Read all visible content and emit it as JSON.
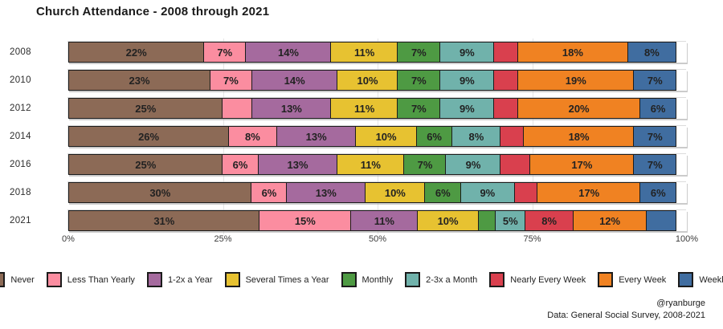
{
  "title": "Church Attendance - 2008 through 2021",
  "credit": {
    "handle": "@ryanburge",
    "source": "Data: General Social Survey, 2008-2021"
  },
  "chart_data": {
    "type": "bar",
    "stacked": true,
    "horizontal": true,
    "title": "Church Attendance - 2008 through 2021",
    "categories": [
      "2008",
      "2010",
      "2012",
      "2014",
      "2016",
      "2018",
      "2021"
    ],
    "series": [
      {
        "name": "Never",
        "color": "#8C6A56",
        "values": [
          22,
          23,
          25,
          26,
          25,
          30,
          31
        ],
        "label_shown": [
          true,
          true,
          true,
          true,
          true,
          true,
          true
        ]
      },
      {
        "name": "Less Than Yearly",
        "color": "#FB8DA0",
        "values": [
          7,
          7,
          5,
          8,
          6,
          6,
          15
        ],
        "label_shown": [
          true,
          true,
          false,
          true,
          true,
          true,
          true
        ]
      },
      {
        "name": "1-2x a Year",
        "color": "#A56A9E",
        "values": [
          14,
          14,
          13,
          13,
          13,
          13,
          11
        ],
        "label_shown": [
          true,
          true,
          true,
          true,
          true,
          true,
          true
        ]
      },
      {
        "name": "Several Times a Year",
        "color": "#E7C231",
        "values": [
          11,
          10,
          11,
          10,
          11,
          10,
          10
        ],
        "label_shown": [
          true,
          true,
          true,
          true,
          true,
          true,
          true
        ]
      },
      {
        "name": "Monthly",
        "color": "#4E9A43",
        "values": [
          7,
          7,
          7,
          6,
          7,
          6,
          3
        ],
        "label_shown": [
          true,
          true,
          true,
          true,
          true,
          true,
          false
        ]
      },
      {
        "name": "2-3x a Month",
        "color": "#70B2AB",
        "values": [
          9,
          9,
          9,
          8,
          9,
          9,
          5
        ],
        "label_shown": [
          true,
          true,
          true,
          true,
          true,
          true,
          true
        ]
      },
      {
        "name": "Nearly Every Week",
        "color": "#D9404E",
        "values": [
          4,
          4,
          4,
          4,
          5,
          4,
          8
        ],
        "label_shown": [
          false,
          false,
          false,
          false,
          false,
          false,
          true
        ]
      },
      {
        "name": "Every Week",
        "color": "#F08222",
        "values": [
          18,
          19,
          20,
          18,
          17,
          17,
          12
        ],
        "label_shown": [
          true,
          true,
          true,
          true,
          true,
          true,
          true
        ]
      },
      {
        "name": "Weekly+",
        "color": "#406DA0",
        "values": [
          8,
          7,
          6,
          7,
          7,
          6,
          5
        ],
        "label_shown": [
          true,
          true,
          true,
          true,
          true,
          true,
          false
        ]
      }
    ],
    "x_ticks": [
      {
        "label": "0%",
        "pos": 0
      },
      {
        "label": "25%",
        "pos": 25
      },
      {
        "label": "50%",
        "pos": 50
      },
      {
        "label": "75%",
        "pos": 75
      },
      {
        "label": "100%",
        "pos": 100
      }
    ],
    "xlim": [
      0,
      100
    ],
    "value_suffix": "%",
    "legend_position": "bottom",
    "grid": "faint-vertical"
  }
}
